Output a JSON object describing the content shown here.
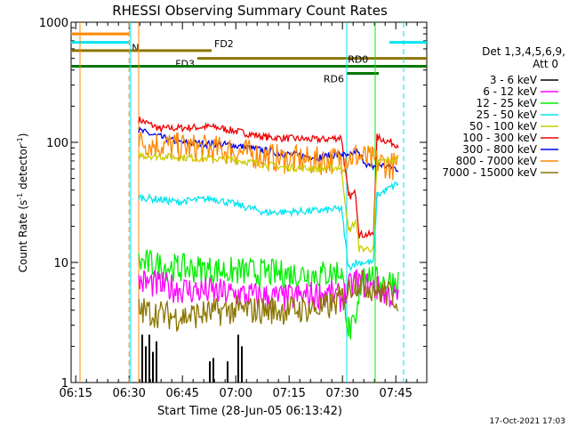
{
  "chart_data": {
    "type": "line",
    "title": "RHESSI Observing Summary Count Rates",
    "xlabel": "Start Time (28-Jun-05 06:13:42)",
    "ylabel_main": "Count Rate (s",
    "ylabel_sup": "-1",
    "ylabel_rest": " detector",
    "ylabel_sup2": "-1",
    "ylabel_close": ")",
    "yscale": "log",
    "xlim_min": [
      0,
      100
    ],
    "ylim": [
      1,
      1000
    ],
    "x_ticks": [
      {
        "label": "06:15",
        "min": 1.3
      },
      {
        "label": "06:30",
        "min": 16.3
      },
      {
        "label": "06:45",
        "min": 31.3
      },
      {
        "label": "07:00",
        "min": 46.3
      },
      {
        "label": "07:15",
        "min": 61.3
      },
      {
        "label": "07:30",
        "min": 76.3
      },
      {
        "label": "07:45",
        "min": 91.3
      }
    ],
    "y_ticks": [
      {
        "label": "1",
        "value": 1
      },
      {
        "label": "10",
        "value": 10
      },
      {
        "label": "100",
        "value": 100
      },
      {
        "label": "1000",
        "value": 1000
      }
    ],
    "legend_title": "Det 1,3,4,5,6,9,",
    "legend_subtitle": "Att 0",
    "series": [
      {
        "name": "3 - 6 keV",
        "color": "#000000"
      },
      {
        "name": "6 - 12 keV",
        "color": "#ff00ff"
      },
      {
        "name": "12 - 25 keV",
        "color": "#00ee00"
      },
      {
        "name": "25 - 50 keV",
        "color": "#00e5ee"
      },
      {
        "name": "50 - 100 keV",
        "color": "#cccc00"
      },
      {
        "name": "100 - 300 keV",
        "color": "#ee0000"
      },
      {
        "name": "300 - 800 keV",
        "color": "#0000ee"
      },
      {
        "name": "800 - 7000 keV",
        "color": "#ff8800"
      },
      {
        "name": "7000 - 15000 keV",
        "color": "#8b7500"
      }
    ],
    "state_bars": [
      {
        "label": "",
        "color": "#ff8800",
        "start": 0,
        "end": 16.3,
        "value": 800
      },
      {
        "label": "N",
        "color": "#00e5ee",
        "start": 0,
        "end": 16.3,
        "value": 680
      },
      {
        "label": "",
        "color": "#00e5ee",
        "start": 89.5,
        "end": 100,
        "value": 680
      },
      {
        "label": "FD2",
        "color": "#8b7500",
        "start": 0,
        "end": 39.5,
        "value": 580
      },
      {
        "label": "FD3",
        "color": "#8b7500",
        "start": 35.5,
        "end": 100,
        "value": 500
      },
      {
        "label": "RD0",
        "color": "#007700",
        "start": 0,
        "end": 100,
        "value": 430
      },
      {
        "label": "RD6",
        "color": "#007700",
        "start": 77.5,
        "end": 86.5,
        "value": 375
      }
    ],
    "curves_approx": [
      {
        "name": "100 - 300 keV",
        "points": [
          [
            19,
            155
          ],
          [
            25,
            130
          ],
          [
            40,
            135
          ],
          [
            55,
            110
          ],
          [
            70,
            105
          ],
          [
            76,
            110
          ],
          [
            78,
            35
          ],
          [
            80,
            38
          ],
          [
            81,
            17
          ],
          [
            85,
            17
          ],
          [
            86,
            110
          ],
          [
            92,
            95
          ]
        ]
      },
      {
        "name": "300 - 800 keV",
        "points": [
          [
            19,
            125
          ],
          [
            30,
            100
          ],
          [
            45,
            95
          ],
          [
            60,
            80
          ],
          [
            70,
            75
          ],
          [
            76,
            80
          ],
          [
            78,
            75
          ],
          [
            80,
            85
          ],
          [
            84,
            62
          ],
          [
            87,
            65
          ],
          [
            92,
            60
          ]
        ]
      },
      {
        "name": "800 - 7000 keV",
        "points": [
          [
            19,
            100
          ],
          [
            30,
            92
          ],
          [
            45,
            85
          ],
          [
            60,
            72
          ],
          [
            70,
            70
          ],
          [
            76,
            72
          ],
          [
            80,
            78
          ],
          [
            85,
            70
          ],
          [
            92,
            62
          ]
        ]
      },
      {
        "name": "50 - 100 keV",
        "points": [
          [
            19,
            78
          ],
          [
            30,
            75
          ],
          [
            45,
            72
          ],
          [
            60,
            62
          ],
          [
            70,
            60
          ],
          [
            76,
            62
          ],
          [
            78,
            18
          ],
          [
            80,
            22
          ],
          [
            81,
            13
          ],
          [
            85,
            13
          ],
          [
            86,
            70
          ],
          [
            92,
            72
          ]
        ]
      },
      {
        "name": "25 - 50 keV",
        "points": [
          [
            19,
            35
          ],
          [
            30,
            32
          ],
          [
            40,
            34
          ],
          [
            55,
            26
          ],
          [
            70,
            27
          ],
          [
            76,
            28
          ],
          [
            78,
            9
          ],
          [
            80,
            10
          ],
          [
            85,
            10
          ],
          [
            86,
            36
          ],
          [
            92,
            46
          ]
        ]
      },
      {
        "name": "12 - 25 keV",
        "points": [
          [
            19,
            10
          ],
          [
            30,
            9
          ],
          [
            45,
            8.5
          ],
          [
            60,
            8
          ],
          [
            72,
            8
          ],
          [
            76,
            8.5
          ],
          [
            78,
            2.8
          ],
          [
            80,
            2.8
          ],
          [
            82,
            9
          ],
          [
            86,
            7
          ],
          [
            92,
            7
          ]
        ]
      },
      {
        "name": "6 - 12 keV",
        "points": [
          [
            19,
            7
          ],
          [
            30,
            6
          ],
          [
            45,
            5.5
          ],
          [
            60,
            5
          ],
          [
            72,
            5.5
          ],
          [
            76,
            5
          ],
          [
            80,
            7
          ],
          [
            86,
            6
          ],
          [
            92,
            5
          ]
        ]
      },
      {
        "name": "7000 - 15000 keV",
        "points": [
          [
            19,
            4
          ],
          [
            30,
            3.5
          ],
          [
            45,
            4
          ],
          [
            60,
            4
          ],
          [
            72,
            4.2
          ],
          [
            76,
            5
          ],
          [
            80,
            7
          ],
          [
            86,
            6
          ],
          [
            92,
            5
          ]
        ]
      }
    ],
    "spikes_3_6": [
      [
        20,
        2.5
      ],
      [
        21,
        2
      ],
      [
        22,
        2.5
      ],
      [
        23,
        1.8
      ],
      [
        24,
        2.2
      ],
      [
        39,
        1.5
      ],
      [
        40,
        1.6
      ],
      [
        44,
        1.5
      ],
      [
        47,
        2.5
      ],
      [
        48,
        2
      ]
    ]
  },
  "footer_timestamp": "17-Oct-2021 17:03"
}
